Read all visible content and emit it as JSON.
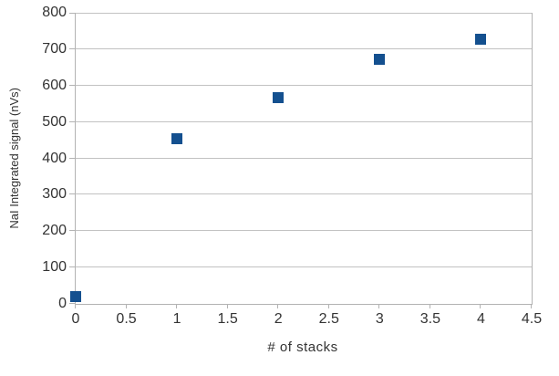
{
  "chart_data": {
    "type": "scatter",
    "xlabel": "# of stacks",
    "ylabel": "NaI Integrated signal (nVs)",
    "x": [
      0,
      1,
      2,
      3,
      4
    ],
    "y": [
      20,
      453,
      568,
      672,
      727
    ],
    "xlim": [
      0,
      4.5
    ],
    "ylim": [
      0,
      800
    ],
    "xtick_labels": [
      "0",
      "0.5",
      "1",
      "1.5",
      "2",
      "2.5",
      "3",
      "3.5",
      "4",
      "4.5"
    ],
    "ytick_labels": [
      "0",
      "100",
      "200",
      "300",
      "400",
      "500",
      "600",
      "700",
      "800"
    ],
    "grid": "horizontal-only",
    "legend": "none",
    "marker_shape": "filled-square",
    "colors": {
      "marker": "#14508f",
      "grid": "#c2c2c2",
      "axis": "#b3b3b3",
      "text": "#333333",
      "background": "#ffffff"
    }
  }
}
